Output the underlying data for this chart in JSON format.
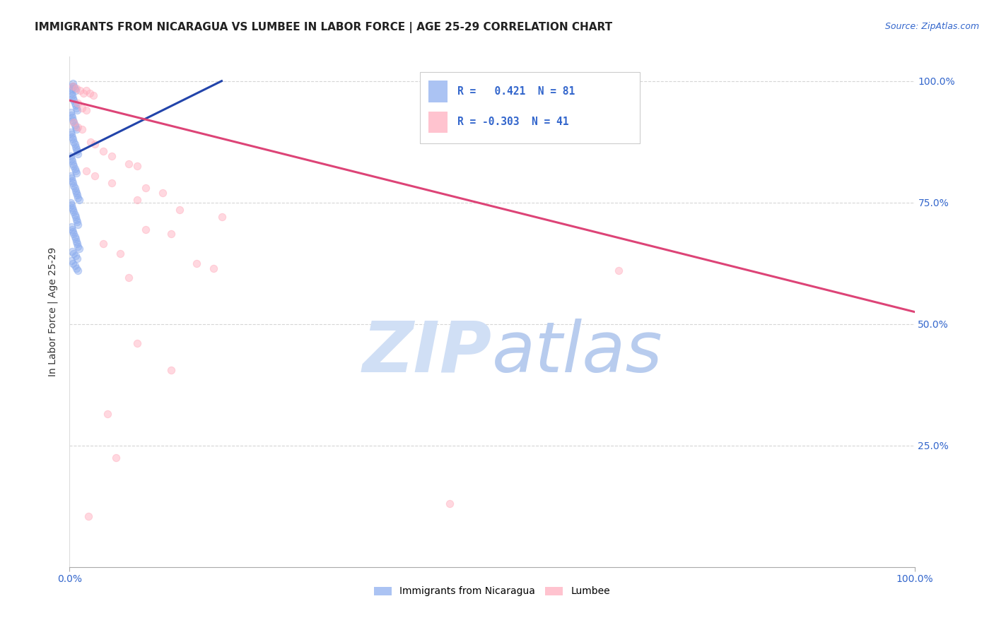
{
  "title": "IMMIGRANTS FROM NICARAGUA VS LUMBEE IN LABOR FORCE | AGE 25-29 CORRELATION CHART",
  "source": "Source: ZipAtlas.com",
  "ylabel": "In Labor Force | Age 25-29",
  "xmin": 0.0,
  "xmax": 1.0,
  "ymin": 0.0,
  "ymax": 1.05,
  "ytick_vals": [
    0.25,
    0.5,
    0.75,
    1.0
  ],
  "ytick_labels": [
    "25.0%",
    "50.0%",
    "75.0%",
    "100.0%"
  ],
  "grid_color": "#cccccc",
  "background_color": "#ffffff",
  "r1_color": "#88aaee",
  "r2_color": "#ffaabb",
  "r1_edge": "#4466cc",
  "r2_edge": "#ee6688",
  "blue_line_color": "#2244aa",
  "pink_line_color": "#dd4477",
  "watermark_color": "#d0dff5",
  "title_color": "#222222",
  "source_color": "#3366cc",
  "tick_color": "#3366cc",
  "scatter_size": 55,
  "scatter_alpha": 0.45,
  "line_width": 2.2,
  "blue_scatter": [
    [
      0.001,
      0.98
    ],
    [
      0.002,
      0.985
    ],
    [
      0.003,
      0.99
    ],
    [
      0.004,
      0.995
    ],
    [
      0.005,
      0.99
    ],
    [
      0.006,
      0.985
    ],
    [
      0.007,
      0.98
    ],
    [
      0.002,
      0.975
    ],
    [
      0.003,
      0.97
    ],
    [
      0.004,
      0.965
    ],
    [
      0.005,
      0.96
    ],
    [
      0.006,
      0.955
    ],
    [
      0.007,
      0.95
    ],
    [
      0.008,
      0.945
    ],
    [
      0.009,
      0.94
    ],
    [
      0.001,
      0.935
    ],
    [
      0.002,
      0.93
    ],
    [
      0.003,
      0.925
    ],
    [
      0.004,
      0.92
    ],
    [
      0.005,
      0.915
    ],
    [
      0.006,
      0.91
    ],
    [
      0.007,
      0.905
    ],
    [
      0.008,
      0.9
    ],
    [
      0.001,
      0.895
    ],
    [
      0.002,
      0.89
    ],
    [
      0.003,
      0.885
    ],
    [
      0.004,
      0.88
    ],
    [
      0.005,
      0.875
    ],
    [
      0.006,
      0.87
    ],
    [
      0.007,
      0.865
    ],
    [
      0.008,
      0.86
    ],
    [
      0.009,
      0.855
    ],
    [
      0.01,
      0.85
    ],
    [
      0.001,
      0.845
    ],
    [
      0.002,
      0.84
    ],
    [
      0.003,
      0.835
    ],
    [
      0.004,
      0.83
    ],
    [
      0.005,
      0.825
    ],
    [
      0.006,
      0.82
    ],
    [
      0.007,
      0.815
    ],
    [
      0.008,
      0.81
    ],
    [
      0.001,
      0.805
    ],
    [
      0.002,
      0.8
    ],
    [
      0.003,
      0.795
    ],
    [
      0.004,
      0.79
    ],
    [
      0.005,
      0.785
    ],
    [
      0.006,
      0.78
    ],
    [
      0.007,
      0.775
    ],
    [
      0.008,
      0.77
    ],
    [
      0.009,
      0.765
    ],
    [
      0.01,
      0.76
    ],
    [
      0.011,
      0.755
    ],
    [
      0.001,
      0.75
    ],
    [
      0.002,
      0.745
    ],
    [
      0.003,
      0.74
    ],
    [
      0.004,
      0.735
    ],
    [
      0.005,
      0.73
    ],
    [
      0.006,
      0.725
    ],
    [
      0.007,
      0.72
    ],
    [
      0.008,
      0.715
    ],
    [
      0.009,
      0.71
    ],
    [
      0.01,
      0.705
    ],
    [
      0.002,
      0.7
    ],
    [
      0.003,
      0.695
    ],
    [
      0.004,
      0.69
    ],
    [
      0.005,
      0.685
    ],
    [
      0.006,
      0.68
    ],
    [
      0.007,
      0.675
    ],
    [
      0.008,
      0.67
    ],
    [
      0.009,
      0.665
    ],
    [
      0.01,
      0.66
    ],
    [
      0.011,
      0.655
    ],
    [
      0.003,
      0.65
    ],
    [
      0.005,
      0.645
    ],
    [
      0.007,
      0.64
    ],
    [
      0.009,
      0.635
    ],
    [
      0.002,
      0.63
    ],
    [
      0.004,
      0.625
    ],
    [
      0.006,
      0.62
    ],
    [
      0.008,
      0.615
    ],
    [
      0.01,
      0.61
    ]
  ],
  "pink_scatter": [
    [
      0.004,
      0.99
    ],
    [
      0.008,
      0.985
    ],
    [
      0.012,
      0.98
    ],
    [
      0.016,
      0.975
    ],
    [
      0.02,
      0.98
    ],
    [
      0.024,
      0.975
    ],
    [
      0.028,
      0.97
    ],
    [
      0.01,
      0.955
    ],
    [
      0.015,
      0.945
    ],
    [
      0.02,
      0.94
    ],
    [
      0.005,
      0.915
    ],
    [
      0.01,
      0.905
    ],
    [
      0.015,
      0.9
    ],
    [
      0.025,
      0.875
    ],
    [
      0.03,
      0.87
    ],
    [
      0.04,
      0.855
    ],
    [
      0.05,
      0.845
    ],
    [
      0.07,
      0.83
    ],
    [
      0.08,
      0.825
    ],
    [
      0.02,
      0.815
    ],
    [
      0.03,
      0.805
    ],
    [
      0.05,
      0.79
    ],
    [
      0.09,
      0.78
    ],
    [
      0.11,
      0.77
    ],
    [
      0.08,
      0.755
    ],
    [
      0.13,
      0.735
    ],
    [
      0.18,
      0.72
    ],
    [
      0.09,
      0.695
    ],
    [
      0.12,
      0.685
    ],
    [
      0.04,
      0.665
    ],
    [
      0.06,
      0.645
    ],
    [
      0.15,
      0.625
    ],
    [
      0.17,
      0.615
    ],
    [
      0.07,
      0.595
    ],
    [
      0.65,
      0.61
    ],
    [
      0.08,
      0.46
    ],
    [
      0.12,
      0.405
    ],
    [
      0.045,
      0.315
    ],
    [
      0.055,
      0.225
    ],
    [
      0.45,
      0.13
    ],
    [
      0.022,
      0.105
    ]
  ],
  "blue_line": [
    [
      0.0,
      0.845
    ],
    [
      0.18,
      1.0
    ]
  ],
  "pink_line": [
    [
      0.0,
      0.96
    ],
    [
      1.0,
      0.525
    ]
  ]
}
